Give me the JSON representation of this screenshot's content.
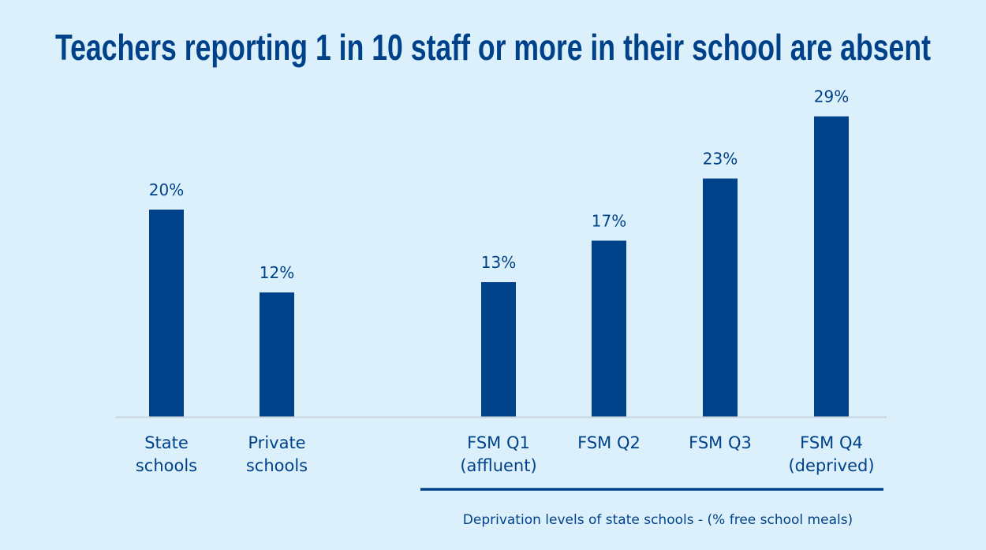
{
  "chart_data": {
    "type": "bar",
    "title": "Teachers reporting 1 in 10 staff or more in their school are absent",
    "categories": [
      [
        "State",
        "schools"
      ],
      [
        "Private",
        "schools"
      ],
      [
        "FSM Q1",
        "(affluent)"
      ],
      [
        "FSM Q2"
      ],
      [
        "FSM Q3"
      ],
      [
        "FSM Q4",
        "(deprived)"
      ]
    ],
    "values": [
      20,
      12,
      13,
      17,
      23,
      29
    ],
    "value_labels": [
      "20%",
      "12%",
      "13%",
      "17%",
      "23%",
      "29%"
    ],
    "group_caption": "Deprivation levels of state schools - (% free school meals)",
    "ylim": [
      0,
      30
    ],
    "grid": false,
    "colors": {
      "bar": "#00428a",
      "background": "#dcf0fb",
      "axis": "#c9d5df",
      "text": "#00428a"
    }
  }
}
